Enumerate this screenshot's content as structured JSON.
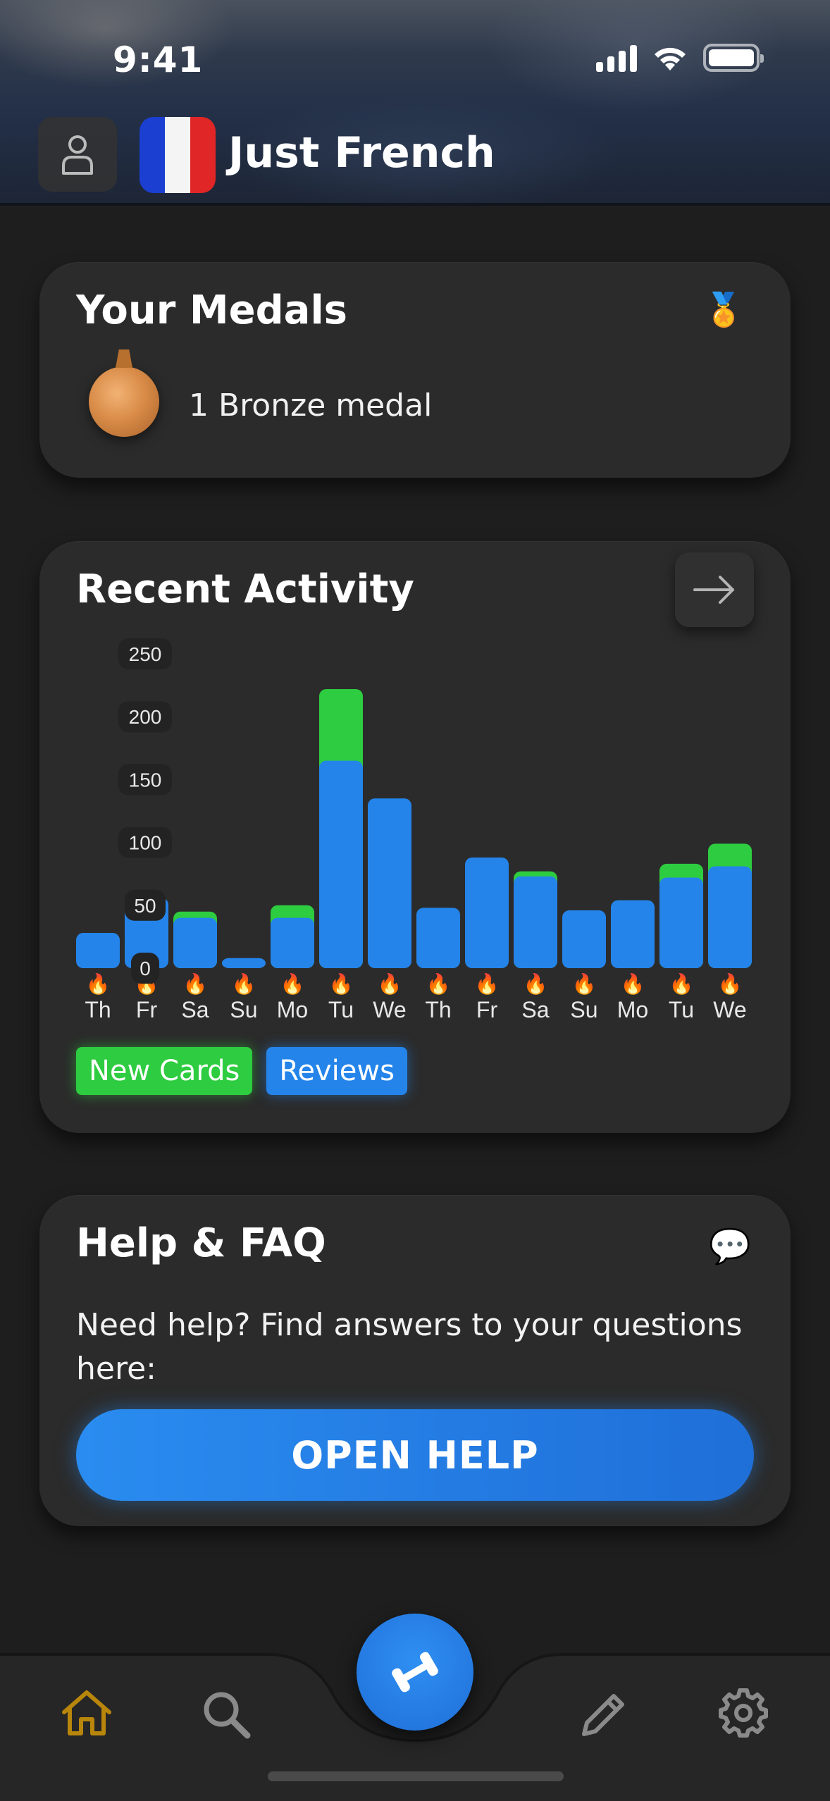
{
  "status": {
    "time": "9:41"
  },
  "header": {
    "title": "Just French"
  },
  "medals": {
    "title": "Your Medals",
    "emoji": "🏅",
    "medal_text": "1 Bronze medal"
  },
  "activity": {
    "title": "Recent Activity",
    "legend": {
      "new": "New Cards",
      "reviews": "Reviews"
    },
    "day_emoji": "🔥"
  },
  "chart_data": {
    "type": "bar",
    "stacked": true,
    "categories": [
      "Th",
      "Fr",
      "Sa",
      "Su",
      "Mo",
      "Tu",
      "We",
      "Th",
      "Fr",
      "Sa",
      "Su",
      "Mo",
      "Tu",
      "We"
    ],
    "series": [
      {
        "name": "Reviews",
        "color": "#2484ea",
        "values": [
          28,
          56,
          40,
          8,
          40,
          165,
          135,
          48,
          88,
          73,
          46,
          54,
          72,
          81
        ]
      },
      {
        "name": "New Cards",
        "color": "#2ecc40",
        "values": [
          0,
          0,
          5,
          0,
          10,
          57,
          0,
          0,
          0,
          4,
          0,
          0,
          11,
          18
        ]
      }
    ],
    "yticks": [
      0,
      50,
      100,
      150,
      200,
      250
    ],
    "ylim": [
      0,
      250
    ]
  },
  "help": {
    "title": "Help & FAQ",
    "emoji": "💬",
    "text": "Need help? Find answers to your questions here:",
    "button": "OPEN HELP"
  },
  "nav": {
    "active_color": "#b8860b",
    "inactive_color": "#8a8a8a",
    "items": [
      "home-icon",
      "search-icon",
      "dumbbell-icon",
      "pencil-icon",
      "gear-icon"
    ]
  }
}
